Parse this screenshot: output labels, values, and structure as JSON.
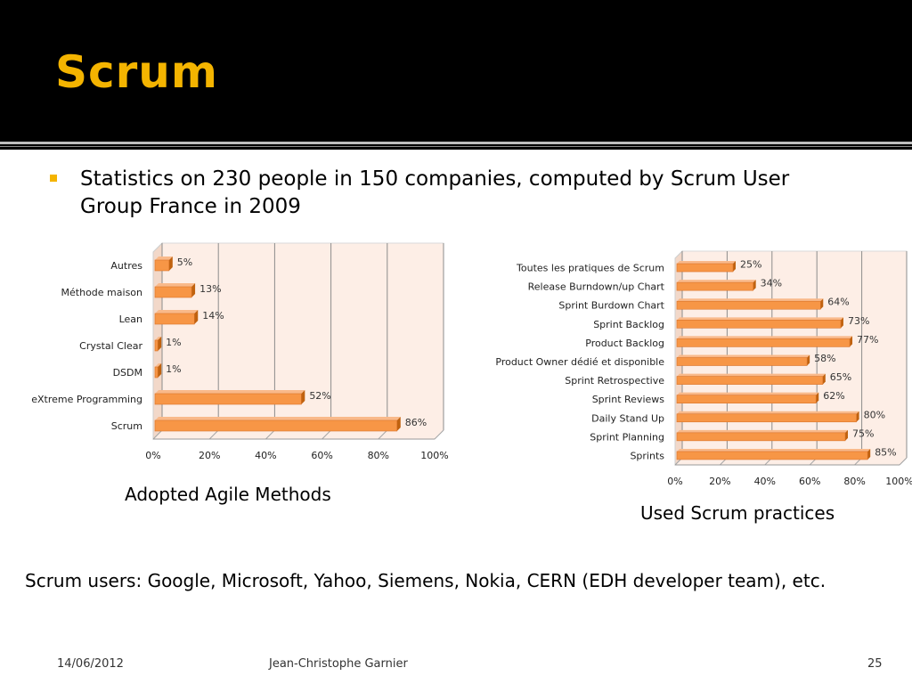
{
  "slide": {
    "title": "Scrum",
    "bullet": "Statistics on 230 people in 150 companies, computed by Scrum User Group France in 2009",
    "caption_left": "Adopted Agile Methods",
    "caption_right": "Used Scrum practices",
    "users": "Scrum users: Google, Microsoft, Yahoo, Siemens, Nokia, CERN (EDH developer team), etc.",
    "footer": {
      "date": "14/06/2012",
      "author": "Jean-Christophe Garnier",
      "page": "25"
    }
  },
  "colors": {
    "title": "#f4b400",
    "bar_front": "#f79646",
    "bar_top": "#f9b98a",
    "bar_side": "#c0620f",
    "plot_bg": "#fdeee6"
  },
  "chart_data": [
    {
      "type": "bar",
      "orientation": "horizontal",
      "categories": [
        "Autres",
        "Méthode maison",
        "Lean",
        "Crystal Clear",
        "DSDM",
        "eXtreme Programming",
        "Scrum"
      ],
      "values": [
        5,
        13,
        14,
        1,
        1,
        52,
        86
      ],
      "data_labels": [
        "5%",
        "13%",
        "14%",
        "1%",
        "1%",
        "52%",
        "86%"
      ],
      "xlim": [
        0,
        100
      ],
      "x_ticks": [
        "0%",
        "20%",
        "40%",
        "60%",
        "80%",
        "100%"
      ],
      "grid": true
    },
    {
      "type": "bar",
      "orientation": "horizontal",
      "categories": [
        "Toutes les pratiques de Scrum",
        "Release Burndown/up Chart",
        "Sprint Burdown Chart",
        "Sprint Backlog",
        "Product Backlog",
        "Product Owner dédié et disponible",
        "Sprint Retrospective",
        "Sprint Reviews",
        "Daily Stand Up",
        "Sprint Planning",
        "Sprints"
      ],
      "values": [
        25,
        34,
        64,
        73,
        77,
        58,
        65,
        62,
        80,
        75,
        85
      ],
      "data_labels": [
        "25%",
        "34%",
        "64%",
        "73%",
        "77%",
        "58%",
        "65%",
        "62%",
        "80%",
        "75%",
        "85%"
      ],
      "xlim": [
        0,
        100
      ],
      "x_ticks": [
        "0%",
        "20%",
        "40%",
        "60%",
        "80%",
        "100%"
      ],
      "grid": true
    }
  ]
}
